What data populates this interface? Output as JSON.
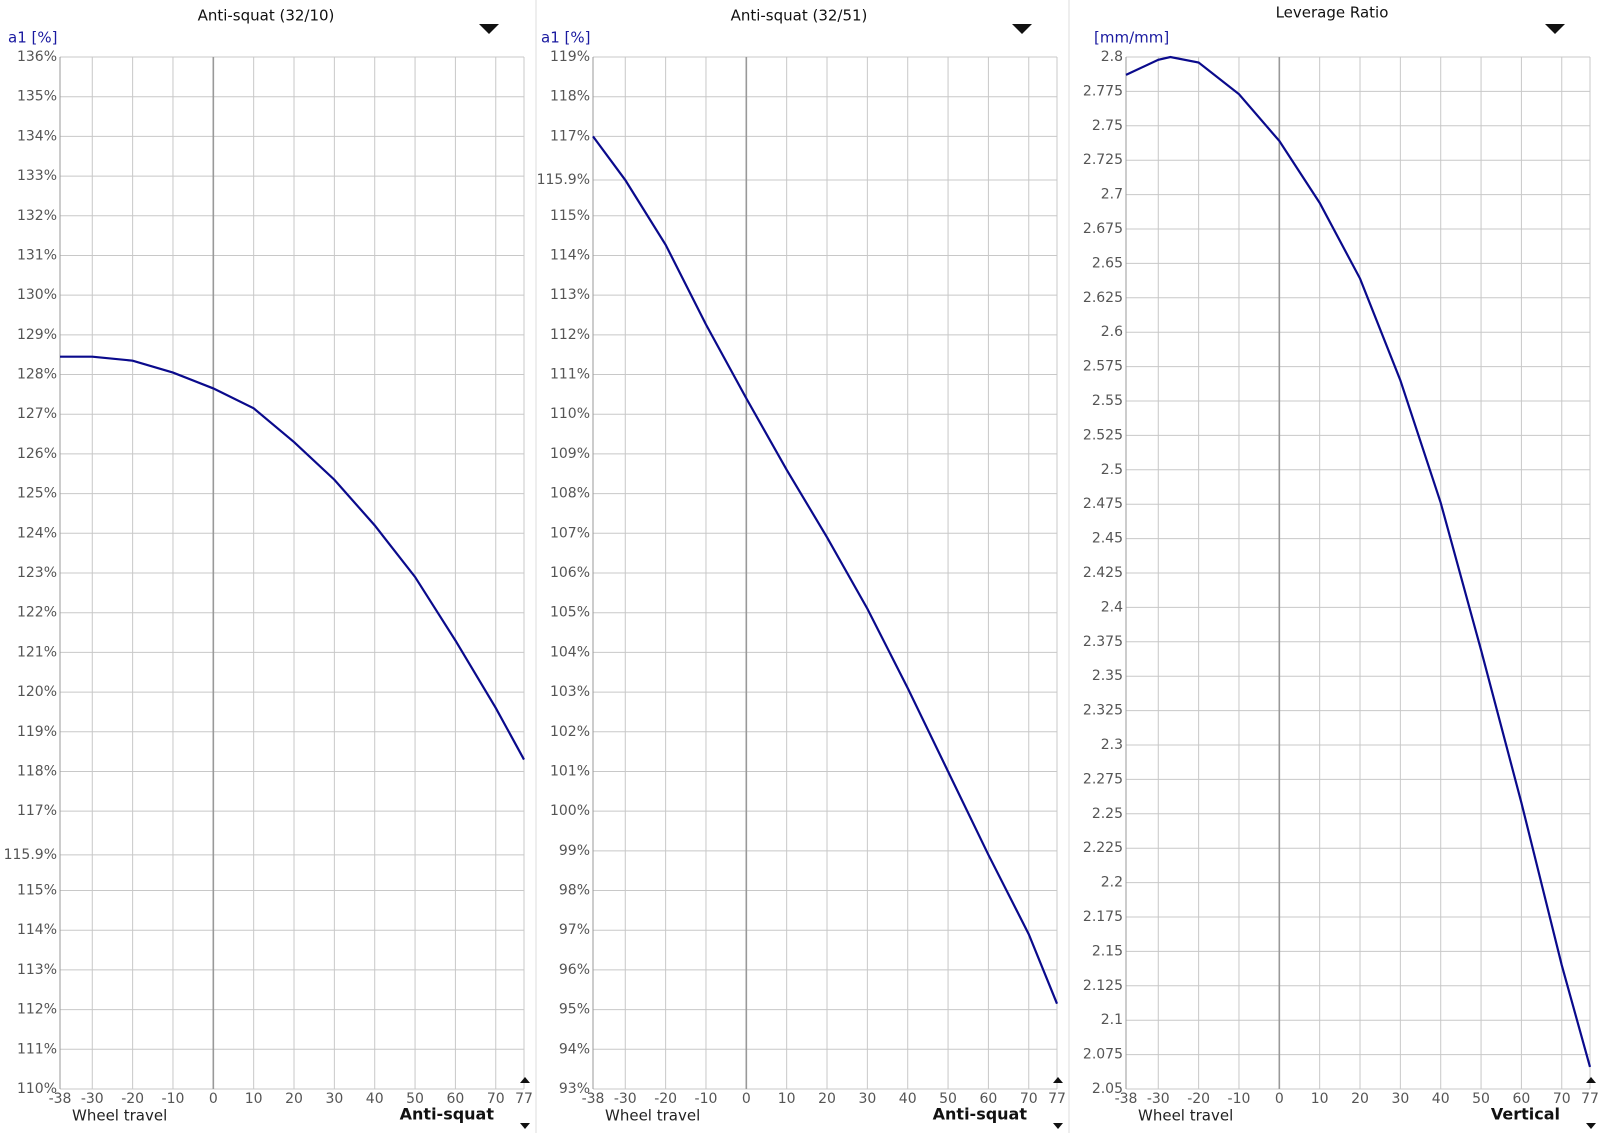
{
  "chart_data": [
    {
      "type": "line",
      "title": "Anti-squat (32/10)",
      "ylabel": "a1 [%]",
      "xlabel": "Wheel travel",
      "grid": true,
      "x": [
        -38,
        -30,
        -20,
        -10,
        0,
        10,
        20,
        30,
        40,
        50,
        60,
        70,
        77
      ],
      "series": [
        {
          "name": "Anti-squat",
          "color": "#0a0a8c",
          "values": [
            128.45,
            128.45,
            128.35,
            128.05,
            127.65,
            127.15,
            126.3,
            125.35,
            124.2,
            122.9,
            121.3,
            119.6,
            118.3
          ]
        }
      ],
      "xlim": [
        -38,
        77
      ],
      "xticks": [
        -38,
        -30,
        -20,
        -10,
        0,
        10,
        20,
        30,
        40,
        50,
        60,
        70,
        77
      ],
      "ylim": [
        110,
        136
      ],
      "yticks": [
        {
          "value": 110,
          "label": "110%"
        },
        {
          "value": 111,
          "label": "111%"
        },
        {
          "value": 112,
          "label": "112%"
        },
        {
          "value": 113,
          "label": "113%"
        },
        {
          "value": 114,
          "label": "114%"
        },
        {
          "value": 115,
          "label": "115%"
        },
        {
          "value": 115.9,
          "label": "115.9%"
        },
        {
          "value": 117,
          "label": "117%"
        },
        {
          "value": 118,
          "label": "118%"
        },
        {
          "value": 119,
          "label": "119%"
        },
        {
          "value": 120,
          "label": "120%"
        },
        {
          "value": 121,
          "label": "121%"
        },
        {
          "value": 122,
          "label": "122%"
        },
        {
          "value": 123,
          "label": "123%"
        },
        {
          "value": 124,
          "label": "124%"
        },
        {
          "value": 125,
          "label": "125%"
        },
        {
          "value": 126,
          "label": "126%"
        },
        {
          "value": 127,
          "label": "127%"
        },
        {
          "value": 128,
          "label": "128%"
        },
        {
          "value": 129,
          "label": "129%"
        },
        {
          "value": 130,
          "label": "130%"
        },
        {
          "value": 131,
          "label": "131%"
        },
        {
          "value": 132,
          "label": "132%"
        },
        {
          "value": 133,
          "label": "133%"
        },
        {
          "value": 134,
          "label": "134%"
        },
        {
          "value": 135,
          "label": "135%"
        },
        {
          "value": 136,
          "label": "136%"
        }
      ]
    },
    {
      "type": "line",
      "title": "Anti-squat (32/51)",
      "ylabel": "a1 [%]",
      "xlabel": "Wheel travel",
      "grid": true,
      "x": [
        -38,
        -30,
        -20,
        -10,
        0,
        10,
        20,
        30,
        40,
        50,
        60,
        70,
        77
      ],
      "series": [
        {
          "name": "Anti-squat",
          "color": "#0a0a8c",
          "values": [
            117.0,
            115.9,
            114.27,
            112.26,
            110.4,
            108.6,
            106.9,
            105.1,
            103.1,
            101.0,
            98.9,
            96.9,
            95.15
          ]
        }
      ],
      "xlim": [
        -38,
        77
      ],
      "xticks": [
        -38,
        -30,
        -20,
        -10,
        0,
        10,
        20,
        30,
        40,
        50,
        60,
        70,
        77
      ],
      "ylim": [
        93,
        119
      ],
      "yticks": [
        {
          "value": 93,
          "label": "93%"
        },
        {
          "value": 94,
          "label": "94%"
        },
        {
          "value": 95,
          "label": "95%"
        },
        {
          "value": 96,
          "label": "96%"
        },
        {
          "value": 97,
          "label": "97%"
        },
        {
          "value": 98,
          "label": "98%"
        },
        {
          "value": 99,
          "label": "99%"
        },
        {
          "value": 100,
          "label": "100%"
        },
        {
          "value": 101,
          "label": "101%"
        },
        {
          "value": 102,
          "label": "102%"
        },
        {
          "value": 103,
          "label": "103%"
        },
        {
          "value": 104,
          "label": "104%"
        },
        {
          "value": 105,
          "label": "105%"
        },
        {
          "value": 106,
          "label": "106%"
        },
        {
          "value": 107,
          "label": "107%"
        },
        {
          "value": 108,
          "label": "108%"
        },
        {
          "value": 109,
          "label": "109%"
        },
        {
          "value": 110,
          "label": "110%"
        },
        {
          "value": 111,
          "label": "111%"
        },
        {
          "value": 112,
          "label": "112%"
        },
        {
          "value": 113,
          "label": "113%"
        },
        {
          "value": 114,
          "label": "114%"
        },
        {
          "value": 115,
          "label": "115%"
        },
        {
          "value": 115.9,
          "label": "115.9%"
        },
        {
          "value": 117,
          "label": "117%"
        },
        {
          "value": 118,
          "label": "118%"
        },
        {
          "value": 119,
          "label": "119%"
        }
      ]
    },
    {
      "type": "line",
      "title": "Leverage Ratio",
      "ylabel": "[mm/mm]",
      "xlabel": "Wheel travel",
      "grid": true,
      "x": [
        -38,
        -30,
        -27,
        -20,
        -10,
        0,
        10,
        20,
        30,
        40,
        50,
        60,
        70,
        77
      ],
      "series": [
        {
          "name": "Vertical",
          "color": "#0a0a8c",
          "values": [
            2.787,
            2.798,
            2.8,
            2.796,
            2.773,
            2.739,
            2.694,
            2.639,
            2.565,
            2.476,
            2.369,
            2.258,
            2.14,
            2.066
          ]
        }
      ],
      "xlim": [
        -38,
        77
      ],
      "xticks": [
        -38,
        -30,
        -20,
        -10,
        0,
        10,
        20,
        30,
        40,
        50,
        60,
        70,
        77
      ],
      "ylim": [
        2.05,
        2.8
      ],
      "yticks": [
        2.05,
        2.075,
        2.1,
        2.125,
        2.15,
        2.175,
        2.2,
        2.225,
        2.25,
        2.275,
        2.3,
        2.325,
        2.35,
        2.375,
        2.4,
        2.425,
        2.45,
        2.475,
        2.5,
        2.525,
        2.55,
        2.575,
        2.6,
        2.625,
        2.65,
        2.675,
        2.7,
        2.725,
        2.75,
        2.775,
        2.8
      ]
    }
  ]
}
